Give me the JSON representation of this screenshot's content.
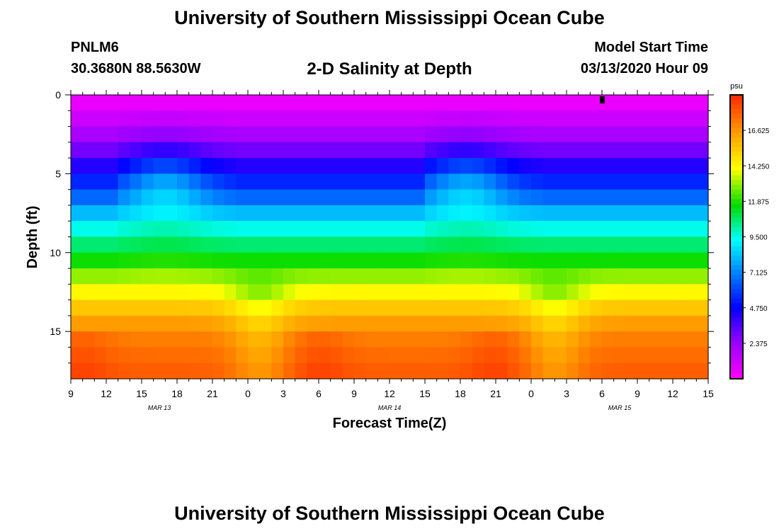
{
  "header": {
    "title": "University of Southern Mississippi Ocean Cube",
    "station_id": "PNLM6",
    "station_coords": "30.3680N 88.5630W",
    "plot_title": "2-D Salinity at Depth",
    "model_label": "Model Start Time",
    "model_time": "03/13/2020 Hour 09"
  },
  "footer": {
    "title": "University of Southern Mississippi Ocean Cube"
  },
  "chart_data": {
    "type": "heatmap",
    "title": "2-D Salinity at Depth",
    "xlabel": "Forecast Time(Z)",
    "ylabel": "Depth (ft)",
    "x_hours": [
      0,
      3,
      6,
      9,
      12,
      15,
      18,
      21,
      24,
      27,
      30,
      33,
      36,
      39,
      42,
      45,
      48,
      51,
      54
    ],
    "x_tick_labels": [
      "9",
      "12",
      "15",
      "18",
      "21",
      "0",
      "3",
      "6",
      "9",
      "12",
      "15",
      "18",
      "21",
      "0",
      "3",
      "6",
      "9",
      "12",
      "15"
    ],
    "date_labels": [
      {
        "hour": 7.5,
        "label": "MAR 13"
      },
      {
        "hour": 27,
        "label": "MAR 14"
      },
      {
        "hour": 46.5,
        "label": "MAR 15"
      }
    ],
    "xlim": [
      0,
      54
    ],
    "y_ticks": [
      0,
      5,
      10,
      15
    ],
    "ylim": [
      0,
      18
    ],
    "marker_hour": 45,
    "colorbar": {
      "unit": "psu",
      "min": 0,
      "max": 19,
      "tick_values": [
        2.375,
        4.75,
        7.125,
        9.5,
        11.875,
        14.25,
        16.625
      ],
      "tick_labels": [
        "2.375",
        "4.750",
        "7.125",
        "9.500",
        "11.875",
        "14.250",
        "16.625"
      ]
    },
    "depth_rows": [
      0.5,
      1.5,
      2.5,
      3.5,
      4.5,
      5.5,
      6.5,
      7.5,
      8.5,
      9.5,
      10.5,
      11.5,
      12.5,
      13.5,
      14.5,
      15.5,
      16.5,
      17.5
    ],
    "baseline_profile": [
      0.5,
      1.2,
      2.0,
      3.0,
      4.2,
      5.4,
      6.6,
      8.1,
      9.5,
      10.6,
      11.7,
      13.0,
      14.2,
      15.4,
      16.4,
      17.1,
      17.5,
      17.8
    ],
    "bump_profile": [
      0,
      0.2,
      0.5,
      1.0,
      1.8,
      2.3,
      2.0,
      1.0,
      0.5,
      0.3,
      0.2,
      0.2,
      0,
      0,
      0,
      0,
      0,
      0
    ],
    "event_hours": [
      5.5,
      31
    ],
    "low_salinity_hours": [
      16,
      41
    ],
    "high_salinity_hours": [
      1,
      21,
      36
    ]
  }
}
